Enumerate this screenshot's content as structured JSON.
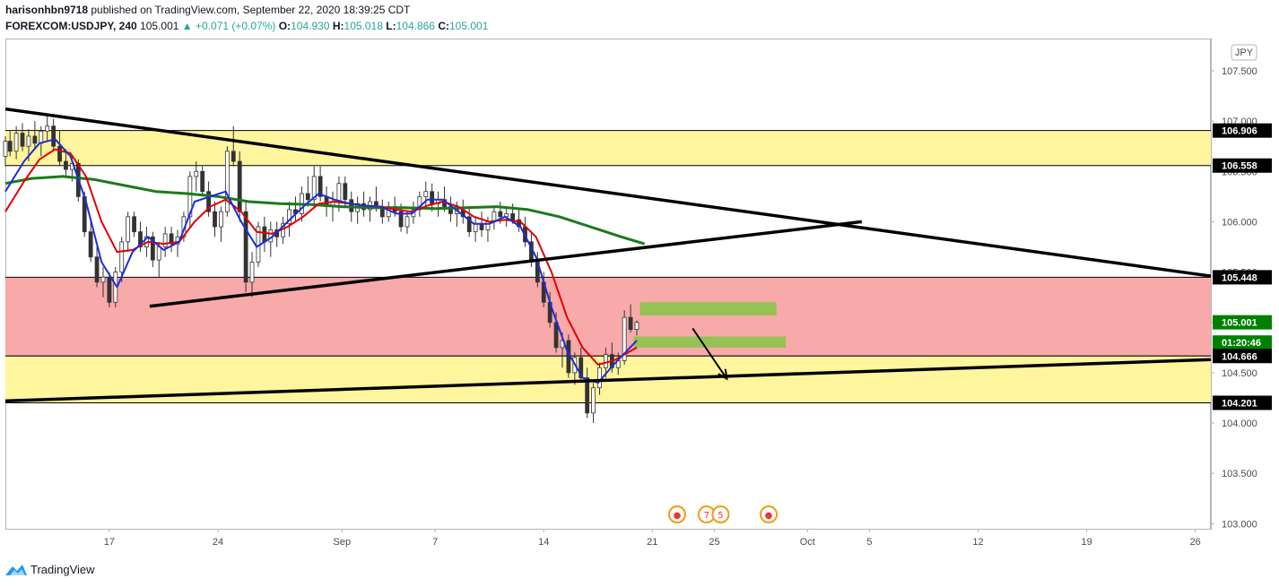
{
  "header": {
    "author": "harisonhbn9718",
    "published": "published on TradingView.com, September 22, 2020 18:39:25 CDT",
    "symbol": "FOREXCOM:USDJPY, 240",
    "last": "105.001",
    "change": "+0.071 (+0.07%)",
    "open_label": "O:",
    "open": "104.930",
    "high_label": "H:",
    "high": "105.018",
    "low_label": "L:",
    "low": "104.866",
    "close_label": "C:",
    "close": "105.001"
  },
  "footer": {
    "brand": "TradingView"
  },
  "chart_data": {
    "type": "candlestick",
    "currency": "JPY",
    "ylim": [
      102.95,
      107.82
    ],
    "price_ticks": [
      "107.500",
      "107.000",
      "106.500",
      "106.000",
      "105.500",
      "105.000",
      "104.500",
      "104.000",
      "103.500",
      "103.000"
    ],
    "date_ticks": [
      {
        "label": "17",
        "day": 17
      },
      {
        "label": "24",
        "day": 24
      },
      {
        "label": "Sep",
        "day": 32
      },
      {
        "label": "7",
        "day": 38
      },
      {
        "label": "14",
        "day": 45
      },
      {
        "label": "21",
        "day": 52
      },
      {
        "label": "25",
        "day": 56
      },
      {
        "label": "Oct",
        "day": 62
      },
      {
        "label": "5",
        "day": 66
      },
      {
        "label": "12",
        "day": 73
      },
      {
        "label": "19",
        "day": 80
      },
      {
        "label": "26",
        "day": 87
      }
    ],
    "date_range_days": [
      10.3,
      88.0
    ],
    "zones": [
      {
        "type": "resistance",
        "top": 106.906,
        "bottom": 106.558,
        "color": "#fff59d"
      },
      {
        "type": "supply",
        "top": 105.448,
        "bottom": 104.666,
        "color": "#f8a9a9"
      },
      {
        "type": "support",
        "top": 104.666,
        "bottom": 104.201,
        "color": "#fff59d"
      }
    ],
    "green_boxes": [
      {
        "x0": 51.2,
        "x1": 60.0,
        "top": 105.2,
        "bottom": 105.07
      },
      {
        "x0": 50.8,
        "x1": 60.6,
        "top": 104.86,
        "bottom": 104.75
      }
    ],
    "trendlines": [
      {
        "x0": 10.3,
        "y0": 107.12,
        "x1": 88.0,
        "y1": 105.46
      },
      {
        "x0": 19.6,
        "y0": 105.16,
        "x1": 65.5,
        "y1": 106.0
      },
      {
        "x0": 10.3,
        "y0": 104.22,
        "x1": 88.0,
        "y1": 104.63
      }
    ],
    "arrow": {
      "x0": 54.6,
      "y0": 104.94,
      "x1": 56.8,
      "y1": 104.44
    },
    "price_labels": [
      {
        "value": "106.906",
        "price": 106.906,
        "color": "#000000"
      },
      {
        "value": "106.558",
        "price": 106.558,
        "color": "#000000"
      },
      {
        "value": "105.448",
        "price": 105.448,
        "color": "#000000"
      },
      {
        "value": "105.001",
        "price": 105.001,
        "color": "#008000"
      },
      {
        "value": "01:20:46",
        "price": 104.8,
        "color": "#008000"
      },
      {
        "value": "104.666",
        "price": 104.666,
        "color": "#000000"
      },
      {
        "value": "104.201",
        "price": 104.201,
        "color": "#000000"
      }
    ],
    "candles": [
      [
        10.3,
        106.65,
        106.85,
        106.55,
        106.8
      ],
      [
        10.6,
        106.8,
        106.9,
        106.65,
        106.7
      ],
      [
        11.0,
        106.7,
        106.95,
        106.62,
        106.88
      ],
      [
        11.4,
        106.88,
        106.98,
        106.7,
        106.75
      ],
      [
        11.8,
        106.75,
        106.92,
        106.6,
        106.85
      ],
      [
        12.2,
        106.85,
        107.0,
        106.72,
        106.78
      ],
      [
        12.6,
        106.78,
        106.95,
        106.65,
        106.9
      ],
      [
        13.0,
        106.9,
        107.05,
        106.8,
        106.95
      ],
      [
        13.4,
        106.95,
        107.02,
        106.7,
        106.75
      ],
      [
        13.8,
        106.75,
        106.9,
        106.55,
        106.6
      ],
      [
        14.2,
        106.6,
        106.72,
        106.45,
        106.52
      ],
      [
        14.6,
        106.52,
        106.65,
        106.4,
        106.58
      ],
      [
        15.0,
        106.58,
        106.62,
        106.2,
        106.25
      ],
      [
        15.4,
        106.25,
        106.3,
        105.85,
        105.9
      ],
      [
        15.8,
        105.9,
        106.0,
        105.6,
        105.65
      ],
      [
        16.2,
        105.65,
        105.75,
        105.35,
        105.4
      ],
      [
        16.6,
        105.4,
        105.55,
        105.25,
        105.45
      ],
      [
        17.0,
        105.45,
        105.5,
        105.15,
        105.2
      ],
      [
        17.4,
        105.2,
        105.55,
        105.15,
        105.5
      ],
      [
        17.8,
        105.5,
        105.85,
        105.4,
        105.8
      ],
      [
        18.2,
        105.8,
        106.1,
        105.7,
        106.05
      ],
      [
        18.6,
        106.05,
        106.1,
        105.85,
        105.9
      ],
      [
        19.0,
        105.9,
        106.0,
        105.7,
        105.75
      ],
      [
        19.4,
        105.75,
        105.95,
        105.65,
        105.85
      ],
      [
        19.8,
        105.85,
        105.9,
        105.55,
        105.62
      ],
      [
        20.2,
        105.62,
        105.8,
        105.45,
        105.75
      ],
      [
        20.6,
        105.75,
        105.95,
        105.65,
        105.88
      ],
      [
        21.0,
        105.88,
        105.95,
        105.7,
        105.78
      ],
      [
        21.4,
        105.78,
        105.92,
        105.65,
        105.85
      ],
      [
        21.8,
        105.85,
        106.1,
        105.8,
        106.05
      ],
      [
        22.2,
        106.05,
        106.5,
        105.95,
        106.45
      ],
      [
        22.6,
        106.45,
        106.6,
        106.3,
        106.5
      ],
      [
        23.0,
        106.5,
        106.55,
        106.25,
        106.3
      ],
      [
        23.4,
        106.3,
        106.4,
        106.05,
        106.1
      ],
      [
        23.8,
        106.1,
        106.2,
        105.85,
        105.95
      ],
      [
        24.2,
        105.95,
        106.15,
        105.8,
        106.1
      ],
      [
        24.6,
        106.1,
        106.75,
        106.05,
        106.7
      ],
      [
        25.0,
        106.7,
        106.95,
        106.55,
        106.6
      ],
      [
        25.4,
        106.6,
        106.7,
        106.0,
        106.1
      ],
      [
        25.8,
        106.1,
        106.2,
        105.3,
        105.4
      ],
      [
        26.2,
        105.4,
        105.7,
        105.25,
        105.6
      ],
      [
        26.6,
        105.6,
        106.0,
        105.55,
        105.95
      ],
      [
        27.0,
        105.95,
        106.05,
        105.7,
        105.8
      ],
      [
        27.4,
        105.8,
        106.0,
        105.65,
        105.92
      ],
      [
        27.8,
        105.92,
        106.0,
        105.75,
        105.85
      ],
      [
        28.2,
        105.85,
        106.05,
        105.78,
        105.98
      ],
      [
        28.6,
        105.98,
        106.2,
        105.85,
        106.12
      ],
      [
        29.0,
        106.12,
        106.25,
        106.0,
        106.08
      ],
      [
        29.4,
        106.08,
        106.35,
        106.0,
        106.28
      ],
      [
        29.8,
        106.28,
        106.45,
        106.15,
        106.22
      ],
      [
        30.2,
        106.22,
        106.55,
        106.15,
        106.45
      ],
      [
        30.6,
        106.45,
        106.55,
        106.2,
        106.25
      ],
      [
        31.0,
        106.25,
        106.35,
        106.05,
        106.15
      ],
      [
        31.4,
        106.15,
        106.3,
        106.0,
        106.2
      ],
      [
        31.8,
        106.2,
        106.45,
        106.1,
        106.38
      ],
      [
        32.2,
        106.38,
        106.45,
        106.15,
        106.22
      ],
      [
        32.6,
        106.22,
        106.3,
        106.0,
        106.1
      ],
      [
        33.0,
        106.1,
        106.25,
        105.98,
        106.18
      ],
      [
        33.4,
        106.18,
        106.3,
        106.05,
        106.12
      ],
      [
        33.8,
        106.12,
        106.25,
        106.0,
        106.2
      ],
      [
        34.2,
        106.2,
        106.35,
        106.1,
        106.15
      ],
      [
        34.6,
        106.15,
        106.22,
        105.98,
        106.05
      ],
      [
        35.0,
        106.05,
        106.2,
        106.0,
        106.15
      ],
      [
        35.4,
        106.15,
        106.25,
        106.05,
        106.1
      ],
      [
        35.8,
        106.1,
        106.18,
        105.9,
        105.95
      ],
      [
        36.2,
        105.95,
        106.1,
        105.88,
        106.05
      ],
      [
        36.6,
        106.05,
        106.2,
        105.98,
        106.12
      ],
      [
        37.0,
        106.12,
        106.3,
        106.05,
        106.25
      ],
      [
        37.4,
        106.25,
        106.4,
        106.15,
        106.3
      ],
      [
        37.8,
        106.3,
        106.38,
        106.1,
        106.18
      ],
      [
        38.2,
        106.18,
        106.3,
        106.05,
        106.22
      ],
      [
        38.6,
        106.22,
        106.35,
        106.1,
        106.15
      ],
      [
        39.0,
        106.15,
        106.25,
        106.0,
        106.08
      ],
      [
        39.4,
        106.08,
        106.2,
        105.95,
        106.12
      ],
      [
        39.8,
        106.12,
        106.22,
        105.98,
        106.05
      ],
      [
        40.2,
        106.05,
        106.15,
        105.85,
        105.9
      ],
      [
        40.6,
        105.9,
        106.05,
        105.8,
        105.98
      ],
      [
        41.0,
        105.98,
        106.1,
        105.85,
        105.92
      ],
      [
        41.4,
        105.92,
        106.05,
        105.8,
        106.0
      ],
      [
        41.8,
        106.0,
        106.15,
        105.92,
        106.1
      ],
      [
        42.2,
        106.1,
        106.2,
        105.98,
        106.05
      ],
      [
        42.6,
        106.05,
        106.15,
        105.95,
        106.08
      ],
      [
        43.0,
        106.08,
        106.18,
        105.98,
        106.02
      ],
      [
        43.4,
        106.02,
        106.12,
        105.9,
        105.95
      ],
      [
        43.8,
        105.95,
        106.05,
        105.75,
        105.8
      ],
      [
        44.2,
        105.8,
        105.9,
        105.55,
        105.6
      ],
      [
        44.6,
        105.6,
        105.7,
        105.35,
        105.4
      ],
      [
        45.0,
        105.4,
        105.5,
        105.15,
        105.2
      ],
      [
        45.4,
        105.2,
        105.3,
        104.95,
        105.0
      ],
      [
        45.8,
        105.0,
        105.1,
        104.7,
        104.75
      ],
      [
        46.2,
        104.75,
        104.9,
        104.55,
        104.82
      ],
      [
        46.6,
        104.82,
        104.88,
        104.45,
        104.5
      ],
      [
        47.0,
        104.5,
        104.7,
        104.38,
        104.65
      ],
      [
        47.4,
        104.65,
        104.75,
        104.4,
        104.45
      ],
      [
        47.8,
        104.45,
        104.55,
        104.05,
        104.1
      ],
      [
        48.2,
        104.1,
        104.4,
        104.0,
        104.35
      ],
      [
        48.6,
        104.35,
        104.6,
        104.28,
        104.55
      ],
      [
        49.0,
        104.55,
        104.75,
        104.45,
        104.68
      ],
      [
        49.4,
        104.68,
        104.8,
        104.5,
        104.55
      ],
      [
        49.8,
        104.55,
        104.7,
        104.48,
        104.62
      ],
      [
        50.2,
        104.62,
        105.12,
        104.58,
        105.05
      ],
      [
        50.6,
        105.05,
        105.18,
        104.9,
        104.93
      ],
      [
        51.0,
        104.93,
        105.02,
        104.87,
        105.0
      ]
    ],
    "blue_ma": [
      [
        10.3,
        106.3
      ],
      [
        11.5,
        106.6
      ],
      [
        12.5,
        106.78
      ],
      [
        13.5,
        106.82
      ],
      [
        14.5,
        106.65
      ],
      [
        15.5,
        106.2
      ],
      [
        16.5,
        105.6
      ],
      [
        17.5,
        105.35
      ],
      [
        18.5,
        105.7
      ],
      [
        19.5,
        105.85
      ],
      [
        20.5,
        105.72
      ],
      [
        21.5,
        105.8
      ],
      [
        22.5,
        106.2
      ],
      [
        23.5,
        106.25
      ],
      [
        24.5,
        106.3
      ],
      [
        25.5,
        106.0
      ],
      [
        26.5,
        105.75
      ],
      [
        27.5,
        105.85
      ],
      [
        28.5,
        106.0
      ],
      [
        29.5,
        106.15
      ],
      [
        30.5,
        106.28
      ],
      [
        31.5,
        106.22
      ],
      [
        32.5,
        106.18
      ],
      [
        33.5,
        106.16
      ],
      [
        34.5,
        106.15
      ],
      [
        35.5,
        106.08
      ],
      [
        36.5,
        106.08
      ],
      [
        37.5,
        106.22
      ],
      [
        38.5,
        106.22
      ],
      [
        39.5,
        106.1
      ],
      [
        40.5,
        105.98
      ],
      [
        41.5,
        105.98
      ],
      [
        42.5,
        106.05
      ],
      [
        43.5,
        105.95
      ],
      [
        44.5,
        105.65
      ],
      [
        45.5,
        105.15
      ],
      [
        46.5,
        104.72
      ],
      [
        47.5,
        104.45
      ],
      [
        48.5,
        104.4
      ],
      [
        49.5,
        104.58
      ],
      [
        51.0,
        104.82
      ]
    ],
    "red_ma": [
      [
        10.3,
        106.1
      ],
      [
        11.5,
        106.4
      ],
      [
        12.5,
        106.62
      ],
      [
        13.5,
        106.72
      ],
      [
        14.5,
        106.68
      ],
      [
        15.5,
        106.45
      ],
      [
        16.5,
        106.0
      ],
      [
        17.5,
        105.7
      ],
      [
        18.5,
        105.72
      ],
      [
        19.5,
        105.8
      ],
      [
        20.5,
        105.78
      ],
      [
        21.5,
        105.8
      ],
      [
        22.5,
        106.0
      ],
      [
        23.5,
        106.15
      ],
      [
        24.5,
        106.22
      ],
      [
        25.5,
        106.1
      ],
      [
        26.5,
        105.9
      ],
      [
        27.5,
        105.88
      ],
      [
        28.5,
        105.95
      ],
      [
        29.5,
        106.05
      ],
      [
        30.5,
        106.18
      ],
      [
        31.5,
        106.2
      ],
      [
        32.5,
        106.18
      ],
      [
        33.5,
        106.16
      ],
      [
        34.5,
        106.15
      ],
      [
        35.5,
        106.12
      ],
      [
        36.5,
        106.1
      ],
      [
        37.5,
        106.16
      ],
      [
        38.5,
        106.2
      ],
      [
        39.5,
        106.15
      ],
      [
        40.5,
        106.05
      ],
      [
        41.5,
        106.0
      ],
      [
        42.5,
        106.02
      ],
      [
        43.5,
        106.0
      ],
      [
        44.5,
        105.85
      ],
      [
        45.5,
        105.5
      ],
      [
        46.5,
        105.05
      ],
      [
        47.5,
        104.75
      ],
      [
        48.5,
        104.58
      ],
      [
        49.5,
        104.62
      ],
      [
        51.0,
        104.75
      ]
    ],
    "green_ma": [
      [
        10.3,
        106.38
      ],
      [
        12.0,
        106.43
      ],
      [
        14.0,
        106.45
      ],
      [
        16.0,
        106.42
      ],
      [
        18.0,
        106.36
      ],
      [
        20.0,
        106.3
      ],
      [
        22.0,
        106.28
      ],
      [
        24.0,
        106.25
      ],
      [
        26.0,
        106.2
      ],
      [
        28.0,
        106.18
      ],
      [
        30.0,
        106.17
      ],
      [
        32.0,
        106.15
      ],
      [
        34.0,
        106.14
      ],
      [
        36.0,
        106.14
      ],
      [
        38.0,
        106.13
      ],
      [
        40.0,
        106.14
      ],
      [
        42.0,
        106.15
      ],
      [
        44.0,
        106.12
      ],
      [
        46.0,
        106.05
      ],
      [
        48.0,
        105.95
      ],
      [
        50.0,
        105.85
      ],
      [
        51.5,
        105.78
      ]
    ],
    "event_markers": [
      {
        "day": 53.6,
        "symbol": "●"
      },
      {
        "day": 55.5,
        "symbol": "7"
      },
      {
        "day": 56.4,
        "symbol": "5"
      },
      {
        "day": 59.5,
        "symbol": "●"
      }
    ]
  }
}
